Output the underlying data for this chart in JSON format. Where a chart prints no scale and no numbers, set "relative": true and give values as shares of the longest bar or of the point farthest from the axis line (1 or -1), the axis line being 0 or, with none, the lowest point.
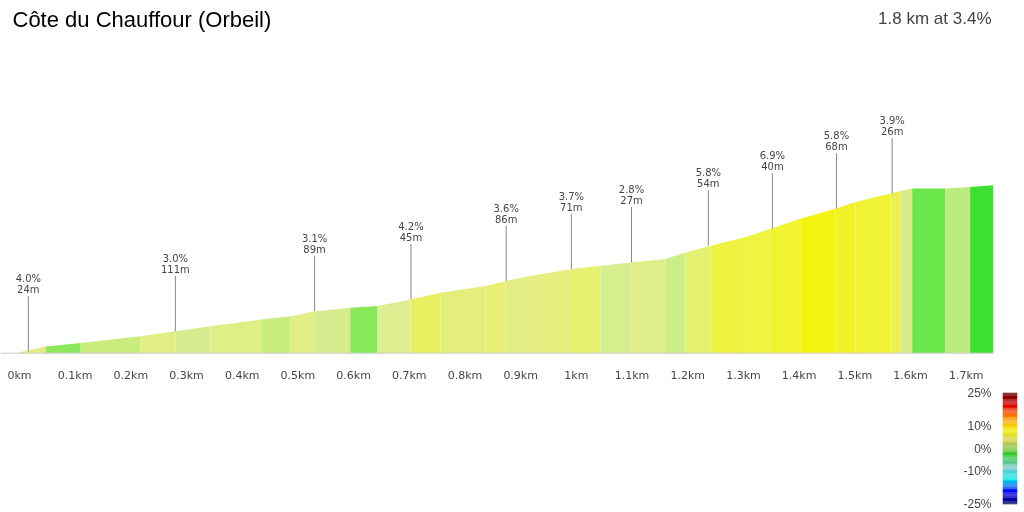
{
  "chart_data": {
    "type": "area",
    "title": "Côte du Chauffour (Orbeil)",
    "subtitle": "1.8 km at 3.4%",
    "relative": true,
    "series": [
      {
        "color": "#e6ea86",
        "x": [
          0,
          0.047
        ],
        "values": [
          0.006,
          0.04
        ]
      },
      {
        "color": "#8ee85e",
        "x": [
          0.047,
          0.11
        ],
        "values": [
          0.04,
          0.06
        ]
      },
      {
        "color": "#c8ec7e",
        "x": [
          0.11,
          0.217
        ],
        "values": [
          0.06,
          0.1
        ]
      },
      {
        "color": "#e2ee86",
        "x": [
          0.217,
          0.28
        ],
        "values": [
          0.1,
          0.13
        ]
      },
      {
        "color": "#d6ec8e",
        "x": [
          0.28,
          0.343
        ],
        "values": [
          0.13,
          0.16
        ]
      },
      {
        "color": "#e0ee86",
        "x": [
          0.343,
          0.433
        ],
        "values": [
          0.16,
          0.2
        ]
      },
      {
        "color": "#c8ee7e",
        "x": [
          0.433,
          0.487
        ],
        "values": [
          0.2,
          0.22
        ]
      },
      {
        "color": "#e2ee86",
        "x": [
          0.487,
          0.531
        ],
        "values": [
          0.22,
          0.25
        ]
      },
      {
        "color": "#d6ec8e",
        "x": [
          0.531,
          0.594
        ],
        "values": [
          0.25,
          0.27
        ]
      },
      {
        "color": "#88e85a",
        "x": [
          0.594,
          0.643
        ],
        "values": [
          0.27,
          0.28
        ]
      },
      {
        "color": "#dcee90",
        "x": [
          0.643,
          0.702
        ],
        "values": [
          0.28,
          0.32
        ]
      },
      {
        "color": "#e8f060",
        "x": [
          0.702,
          0.756
        ],
        "values": [
          0.32,
          0.36
        ]
      },
      {
        "color": "#e4ee7c",
        "x": [
          0.756,
          0.837
        ],
        "values": [
          0.36,
          0.4
        ]
      },
      {
        "color": "#e8ee74",
        "x": [
          0.837,
          0.873
        ],
        "values": [
          0.4,
          0.43
        ]
      },
      {
        "color": "#e2ee86",
        "x": [
          0.873,
          0.917
        ],
        "values": [
          0.43,
          0.46
        ]
      },
      {
        "color": "#e6ee80",
        "x": [
          0.917,
          0.989
        ],
        "values": [
          0.46,
          0.5
        ]
      },
      {
        "color": "#e8f070",
        "x": [
          0.989,
          1.043
        ],
        "values": [
          0.5,
          0.52
        ]
      },
      {
        "color": "#d6ee8e",
        "x": [
          1.043,
          1.097
        ],
        "values": [
          0.52,
          0.54
        ]
      },
      {
        "color": "#e0ee8a",
        "x": [
          1.097,
          1.16
        ],
        "values": [
          0.54,
          0.56
        ]
      },
      {
        "color": "#cbee86",
        "x": [
          1.16,
          1.196
        ],
        "values": [
          0.56,
          0.6
        ]
      },
      {
        "color": "#e6f070",
        "x": [
          1.196,
          1.241
        ],
        "values": [
          0.6,
          0.64
        ]
      },
      {
        "color": "#eef240",
        "x": [
          1.241,
          1.303
        ],
        "values": [
          0.64,
          0.69
        ]
      },
      {
        "color": "#eef440",
        "x": [
          1.303,
          1.348
        ],
        "values": [
          0.69,
          0.74
        ]
      },
      {
        "color": "#f2f430",
        "x": [
          1.348,
          1.402
        ],
        "values": [
          0.74,
          0.8
        ]
      },
      {
        "color": "#f4f410",
        "x": [
          1.402,
          1.465
        ],
        "values": [
          0.8,
          0.86
        ]
      },
      {
        "color": "#f2f228",
        "x": [
          1.465,
          1.501
        ],
        "values": [
          0.86,
          0.9
        ]
      },
      {
        "color": "#f0f236",
        "x": [
          1.501,
          1.564
        ],
        "values": [
          0.9,
          0.95
        ]
      },
      {
        "color": "#ecf050",
        "x": [
          1.564,
          1.582
        ],
        "values": [
          0.95,
          0.965
        ]
      },
      {
        "color": "#d6ec88",
        "x": [
          1.582,
          1.603
        ],
        "values": [
          0.965,
          0.98
        ]
      },
      {
        "color": "#6ae64a",
        "x": [
          1.603,
          1.662
        ],
        "values": [
          0.98,
          0.98
        ]
      },
      {
        "color": "#bcec80",
        "x": [
          1.662,
          1.707
        ],
        "values": [
          0.98,
          0.99
        ]
      },
      {
        "color": "#3ee030",
        "x": [
          1.707,
          1.749
        ],
        "values": [
          0.99,
          1.0
        ]
      }
    ],
    "xlim": [
      -0.034,
      1.749
    ],
    "xticks": [
      {
        "value": 0,
        "label": "0km"
      },
      {
        "value": 0.1,
        "label": "0.1km"
      },
      {
        "value": 0.2,
        "label": "0.2km"
      },
      {
        "value": 0.3,
        "label": "0.3km"
      },
      {
        "value": 0.4,
        "label": "0.4km"
      },
      {
        "value": 0.5,
        "label": "0.5km"
      },
      {
        "value": 0.6,
        "label": "0.6km"
      },
      {
        "value": 0.7,
        "label": "0.7km"
      },
      {
        "value": 0.8,
        "label": "0.8km"
      },
      {
        "value": 0.9,
        "label": "0.9km"
      },
      {
        "value": 1,
        "label": "1km"
      },
      {
        "value": 1.1,
        "label": "1.1km"
      },
      {
        "value": 1.2,
        "label": "1.2km"
      },
      {
        "value": 1.3,
        "label": "1.3km"
      },
      {
        "value": 1.4,
        "label": "1.4km"
      },
      {
        "value": 1.5,
        "label": "1.5km"
      },
      {
        "value": 1.6,
        "label": "1.6km"
      },
      {
        "value": 1.7,
        "label": "1.7km"
      }
    ],
    "clim": [
      -25,
      25
    ],
    "cticks": [
      {
        "value": 25,
        "label": "25%"
      },
      {
        "value": 10,
        "label": "10%"
      },
      {
        "value": 0,
        "label": "0%"
      },
      {
        "value": -10,
        "label": "-10%"
      },
      {
        "value": -25,
        "label": "-25%"
      }
    ],
    "annotations": [
      {
        "text": "4.0%\n24m",
        "x": 0.016,
        "y": 0.01
      },
      {
        "text": "3.0%\n111m",
        "x": 0.28,
        "y": 0.13
      },
      {
        "text": "3.1%\n89m",
        "x": 0.53,
        "y": 0.25
      },
      {
        "text": "4.2%\n45m",
        "x": 0.703,
        "y": 0.32
      },
      {
        "text": "3.6%\n86m",
        "x": 0.874,
        "y": 0.43
      },
      {
        "text": "3.7%\n71m",
        "x": 0.991,
        "y": 0.5
      },
      {
        "text": "2.8%\n27m",
        "x": 1.099,
        "y": 0.54
      },
      {
        "text": "5.8%\n54m",
        "x": 1.237,
        "y": 0.64
      },
      {
        "text": "6.9%\n40m",
        "x": 1.352,
        "y": 0.74
      },
      {
        "text": "5.8%\n68m",
        "x": 1.467,
        "y": 0.86
      },
      {
        "text": "3.9%\n26m",
        "x": 1.567,
        "y": 0.95
      }
    ],
    "grid": false
  }
}
